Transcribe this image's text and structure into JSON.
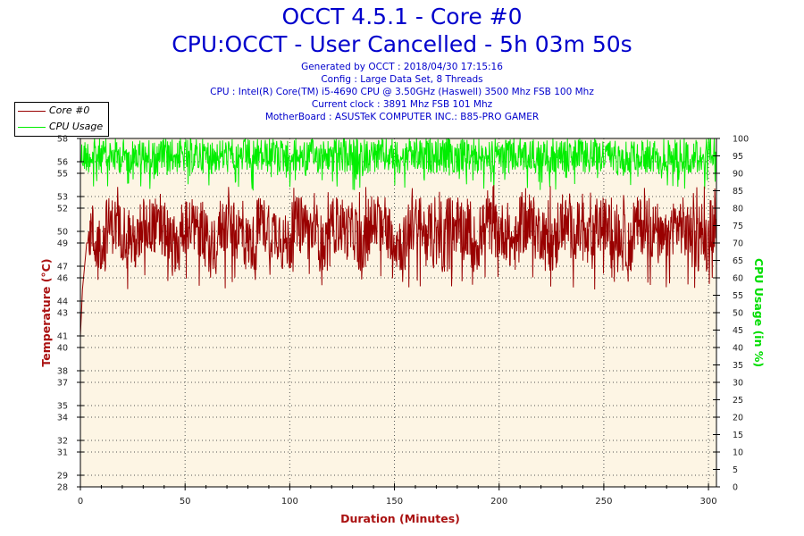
{
  "header": {
    "title": "OCCT 4.5.1 - Core #0",
    "subtitle": "CPU:OCCT - User Cancelled - 5h 03m 50s",
    "info_lines": [
      "Generated by OCCT : 2018/04/30 17:15:16",
      "Config : Large Data Set, 8 Threads",
      "CPU : Intel(R) Core(TM) i5-4690 CPU @ 3.50GHz (Haswell) 3500 Mhz FSB 100 Mhz",
      "Current clock : 3891 Mhz FSB 101 Mhz",
      "MotherBoard : ASUSTeK COMPUTER INC.: B85-PRO GAMER"
    ]
  },
  "colors": {
    "core_series": "#990000",
    "cpu_series": "#00ee00",
    "plot_background": "#fdf5e4",
    "axis_left_label": "#aa1111",
    "axis_right_label": "#00dd00",
    "title": "#0000cc"
  },
  "chart_data": {
    "type": "line",
    "xlabel": "Duration (Minutes)",
    "ylabel": "Temperature (°C)",
    "y2label": "CPU Usage (in %)",
    "xlim": [
      0,
      303.8
    ],
    "ylim": [
      28,
      58
    ],
    "y2lim": [
      0,
      100
    ],
    "xticks": [
      "0",
      "50",
      "100",
      "150",
      "200",
      "250",
      "300"
    ],
    "yticks": [
      "28",
      "29",
      "31",
      "32",
      "34",
      "35",
      "37",
      "38",
      "40",
      "41",
      "43",
      "44",
      "46",
      "47",
      "49",
      "50",
      "52",
      "53",
      "55",
      "56",
      "58"
    ],
    "y2ticks": [
      "0",
      "5",
      "10",
      "15",
      "20",
      "25",
      "30",
      "35",
      "40",
      "45",
      "50",
      "55",
      "60",
      "65",
      "70",
      "75",
      "80",
      "85",
      "90",
      "95",
      "100"
    ],
    "grid": true,
    "legend_position": "top-left",
    "series": [
      {
        "name": "Core #0",
        "axis": "left",
        "typical_range": [
          47,
          52
        ],
        "spike_max": 54,
        "dip_min": 45,
        "startup": {
          "x": [
            0,
            0.5,
            1,
            1.5,
            2,
            2.5,
            3,
            3.5,
            4
          ],
          "y": [
            41,
            43,
            45,
            46,
            47,
            48,
            49,
            49,
            50
          ]
        }
      },
      {
        "name": "CPU Usage",
        "axis": "right",
        "typical_range": [
          90,
          100
        ],
        "dip_min": 85
      }
    ]
  },
  "legend": {
    "items": [
      {
        "label": "Core #0"
      },
      {
        "label": "CPU Usage"
      }
    ]
  }
}
